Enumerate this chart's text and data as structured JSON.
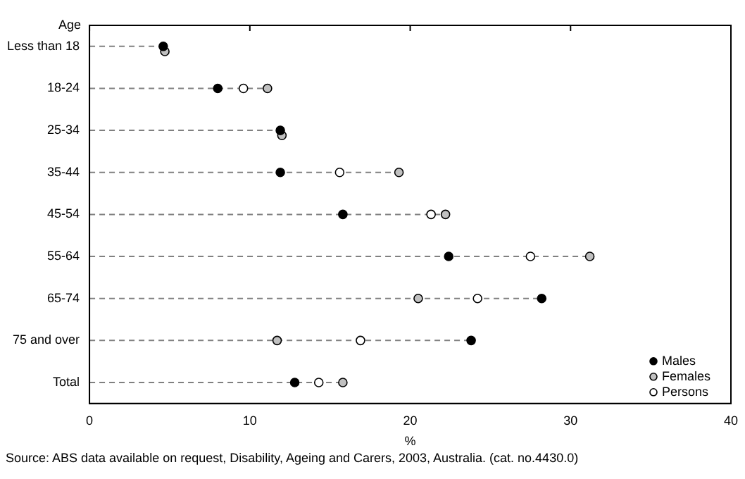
{
  "chart_data": {
    "type": "lollipop",
    "orientation": "horizontal",
    "ylabel": "Age",
    "xlabel": "%",
    "categories": [
      "Less than 18",
      "18-24",
      "25-34",
      "35-44",
      "45-54",
      "55-64",
      "65-74",
      "75 and over",
      "Total"
    ],
    "series": [
      {
        "name": "Males",
        "color": "#000000",
        "values": [
          4.6,
          8.0,
          11.9,
          11.9,
          15.8,
          22.4,
          28.2,
          23.8,
          12.8
        ]
      },
      {
        "name": "Females",
        "color": "#c0c0c0",
        "values": [
          4.7,
          11.1,
          12.0,
          19.3,
          22.2,
          31.2,
          20.5,
          11.7,
          15.8
        ]
      },
      {
        "name": "Persons",
        "color": "#ffffff",
        "values": [
          null,
          9.6,
          null,
          15.6,
          21.3,
          27.5,
          24.2,
          16.9,
          14.3
        ]
      }
    ],
    "xlim": [
      0,
      40
    ],
    "xticks": [
      0,
      10,
      20,
      30,
      40
    ],
    "marker": "circle",
    "line_style": "dashed",
    "legend": "bottom right",
    "annotations": [
      "Source: ABS data available on request, Disability, Ageing and Carers, 2003, Australia. (cat. no.4430.0)"
    ]
  }
}
